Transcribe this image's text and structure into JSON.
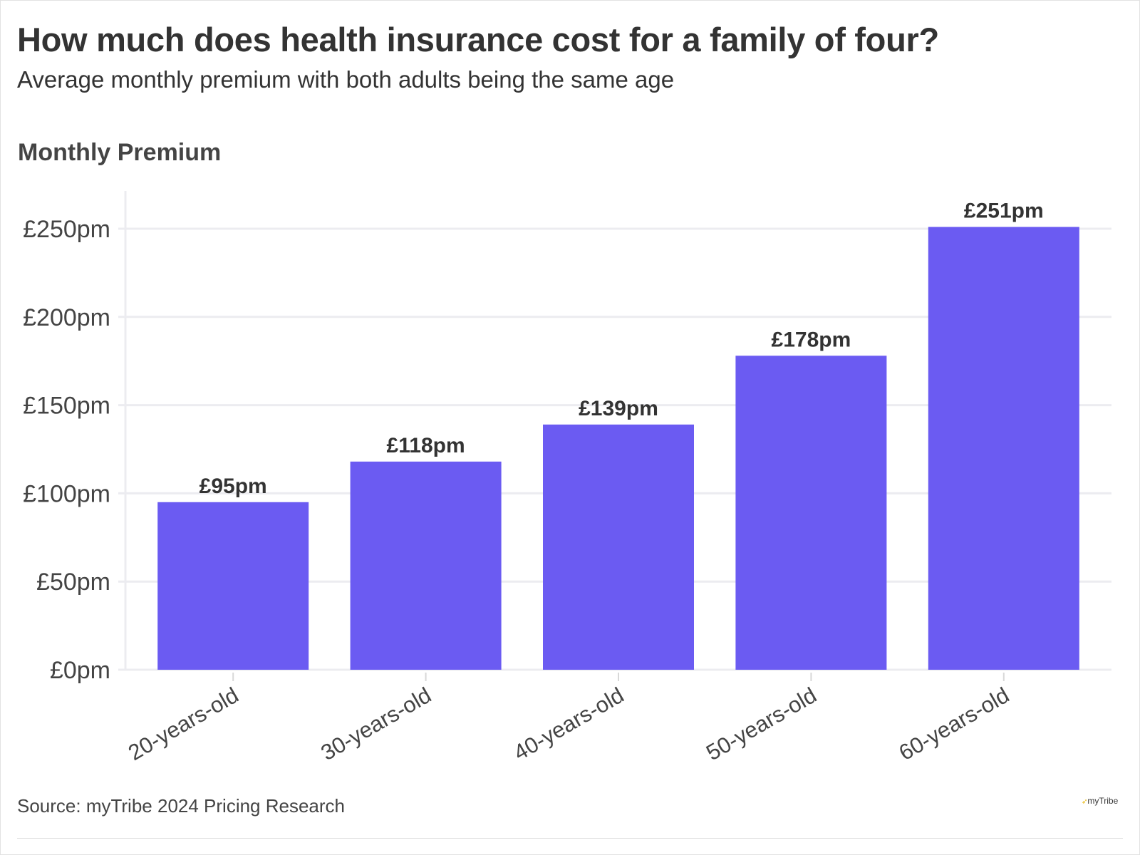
{
  "header": {
    "title": "How much does health insurance cost for a family of four?",
    "subtitle": "Average monthly premium with both adults being the same age"
  },
  "footer": {
    "source": "Source: myTribe 2024 Pricing Research",
    "brand": "myTribe"
  },
  "colors": {
    "bar": "#6b5bf2",
    "grid": "#ececf0",
    "text": "#333333",
    "tick_text": "#444444"
  },
  "chart_data": {
    "type": "bar",
    "ylabel": "Monthly Premium",
    "categories": [
      "20-years-old",
      "30-years-old",
      "40-years-old",
      "50-years-old",
      "60-years-old"
    ],
    "values": [
      95,
      118,
      139,
      178,
      251
    ],
    "value_labels": [
      "£95pm",
      "£118pm",
      "£139pm",
      "£178pm",
      "£251pm"
    ],
    "ylim": [
      0,
      250
    ],
    "yticks": [
      0,
      50,
      100,
      150,
      200,
      250
    ],
    "ytick_labels": [
      "£0pm",
      "£50pm",
      "£100pm",
      "£150pm",
      "£200pm",
      "£250pm"
    ],
    "grid": true,
    "legend": "none"
  }
}
